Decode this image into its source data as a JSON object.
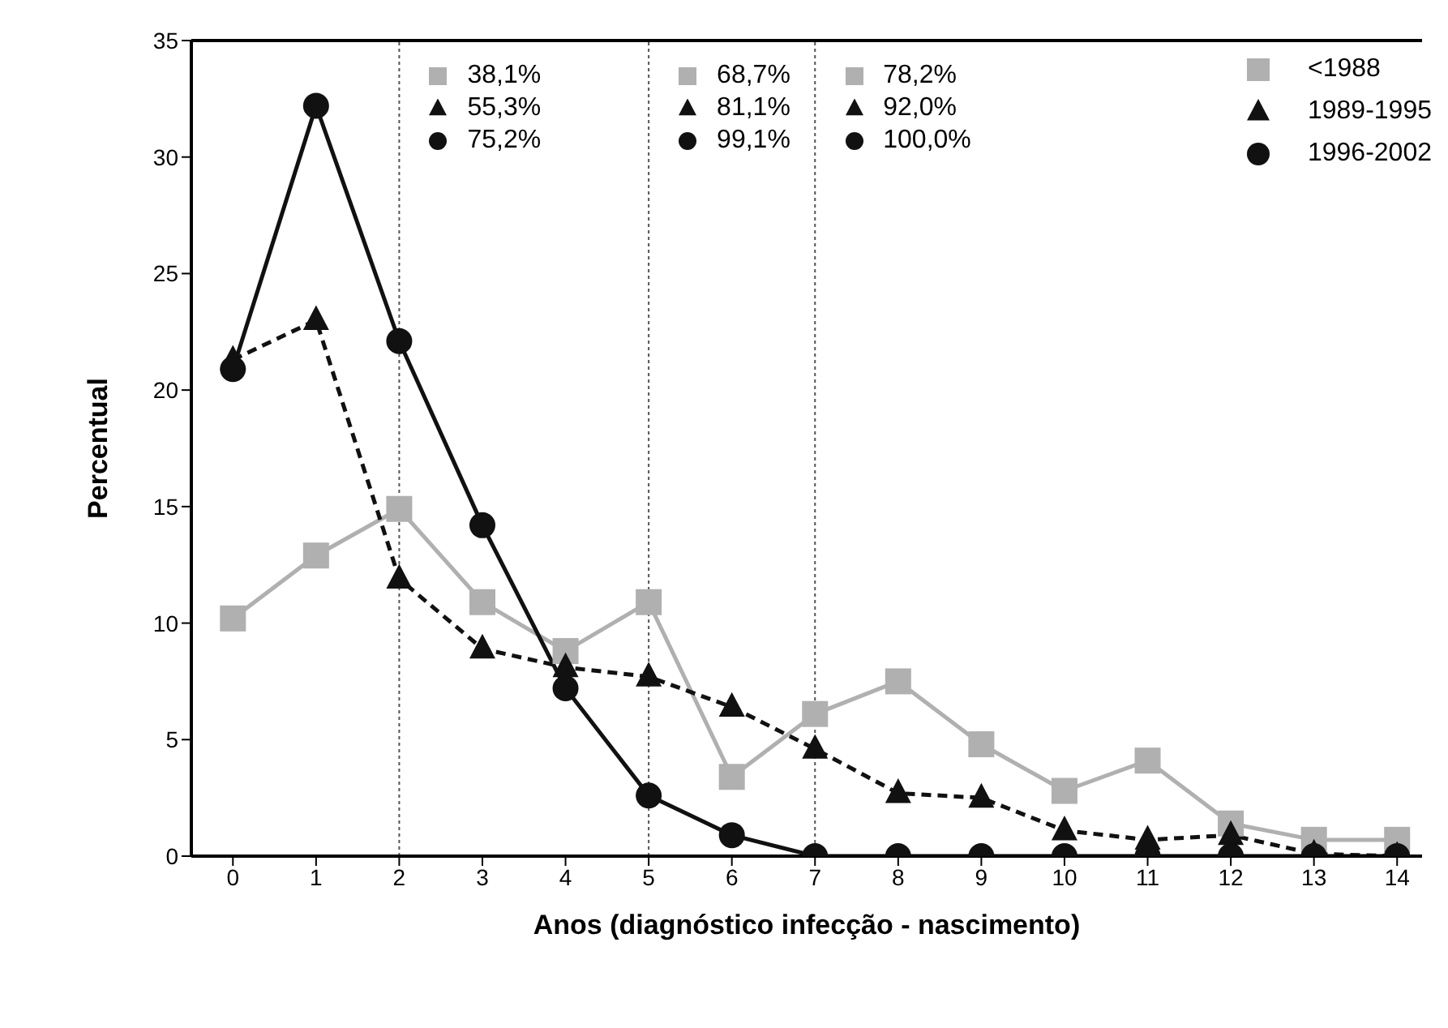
{
  "chart_data": {
    "type": "line",
    "xlabel": "Anos (diagnóstico infecção - nascimento)",
    "ylabel": "Percentual",
    "x": [
      0,
      1,
      2,
      3,
      4,
      5,
      6,
      7,
      8,
      9,
      10,
      11,
      12,
      13,
      14
    ],
    "series": [
      {
        "name": "<1988",
        "color": "#b0b0b0",
        "marker": "square",
        "line_style": "solid",
        "values": [
          10.2,
          12.9,
          14.9,
          10.9,
          8.8,
          10.9,
          3.4,
          6.1,
          7.5,
          4.8,
          2.8,
          4.1,
          1.4,
          0.7,
          0.7
        ]
      },
      {
        "name": "1989-1995",
        "color": "#111111",
        "marker": "triangle",
        "line_style": "dashed",
        "values": [
          21.3,
          23.0,
          11.9,
          8.9,
          8.1,
          7.7,
          6.4,
          4.6,
          2.7,
          2.5,
          1.1,
          0.7,
          0.9,
          0.1,
          0.0
        ]
      },
      {
        "name": "1996-2002",
        "color": "#111111",
        "marker": "circle",
        "line_style": "solid",
        "values": [
          20.9,
          32.2,
          22.1,
          14.2,
          7.2,
          2.6,
          0.9,
          0,
          0,
          0,
          0,
          0,
          0,
          0,
          0
        ]
      }
    ],
    "xlim": [
      -0.5,
      14.3
    ],
    "ylim": [
      0,
      35
    ],
    "xticks": [
      0,
      1,
      2,
      3,
      4,
      5,
      6,
      7,
      8,
      9,
      10,
      11,
      12,
      13,
      14
    ],
    "yticks": [
      0,
      5,
      10,
      15,
      20,
      25,
      30,
      35
    ],
    "ref_lines": [
      {
        "axis": "x",
        "value": 2,
        "line_style": "dotted",
        "color": "#555555"
      },
      {
        "axis": "x",
        "value": 5,
        "line_style": "dotted",
        "color": "#555555"
      },
      {
        "axis": "x",
        "value": 7,
        "line_style": "dotted",
        "color": "#555555"
      }
    ],
    "annotations": [
      "38,1%",
      "55,3%",
      "75,2%",
      "68,7%",
      "81,1%",
      "99,1%",
      "78,2%",
      "92,0%",
      "100,0%"
    ],
    "legend": "top right"
  }
}
